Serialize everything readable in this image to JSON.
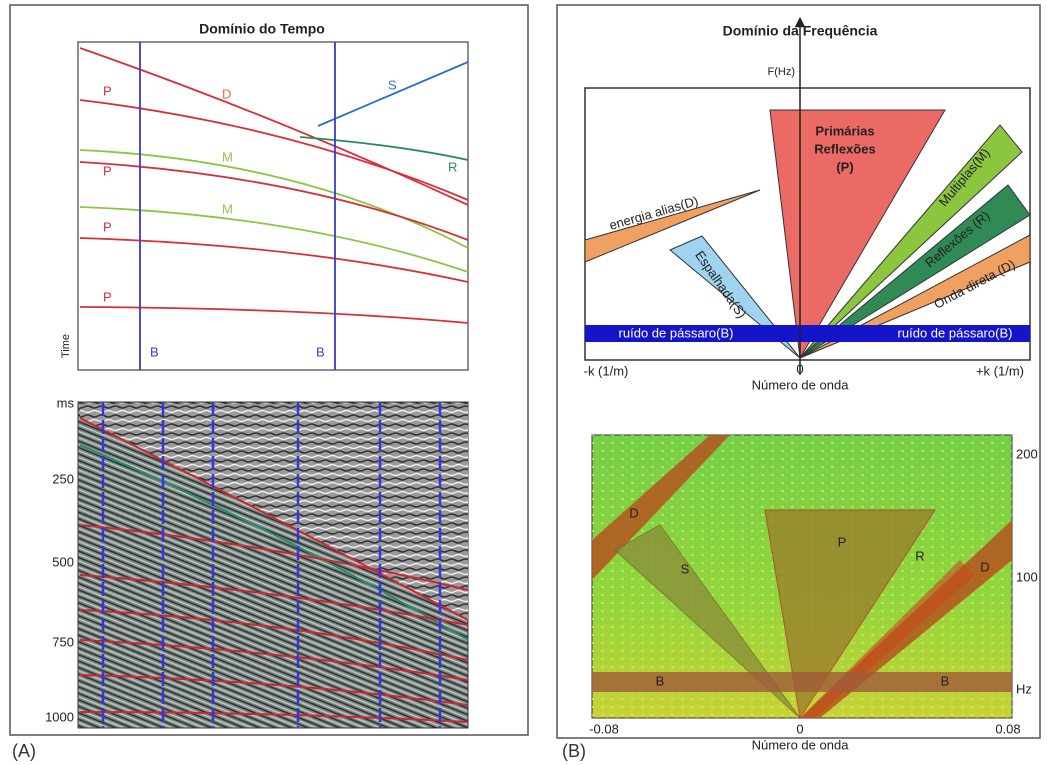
{
  "panel_a": {
    "caption": "(A)",
    "time_domain": {
      "title": "Domínio do Tempo",
      "axis_label": "Time",
      "events": [
        "P",
        "D",
        "S",
        "M",
        "R",
        "P",
        "M",
        "P",
        "P"
      ],
      "bird_labels": [
        "B",
        "B"
      ]
    },
    "seismic": {
      "ticks": [
        "ms",
        "250",
        "500",
        "750",
        "1000"
      ]
    }
  },
  "panel_b": {
    "caption": "(B)",
    "fk_diagram": {
      "title": "Domínio da Frequência",
      "axis_label": "F(Hz)",
      "primaries": [
        "Primárias",
        "Reflexões",
        "(P)"
      ],
      "multiples": "Multiplas(M)",
      "reflections": "Reflexões (R)",
      "direct_wave": "Onda direta (D)",
      "alias": "energia alias(D)",
      "scattered": "Espalhada(S)",
      "bird_noise": [
        "ruído de pássaro(B)",
        "ruído de pássaro(B)"
      ],
      "x_ticks": [
        "-k (1/m)",
        "0",
        "+k (1/m)"
      ],
      "x_label": "Número de onda"
    },
    "fk_spectrum": {
      "events": [
        "D",
        "S",
        "P",
        "R",
        "D",
        "B",
        "B"
      ],
      "y_ticks": [
        "200",
        "100",
        "Hz"
      ],
      "x_ticks": [
        "-0.08",
        "0",
        "0.08"
      ],
      "x_label": "Número de onda"
    }
  }
}
